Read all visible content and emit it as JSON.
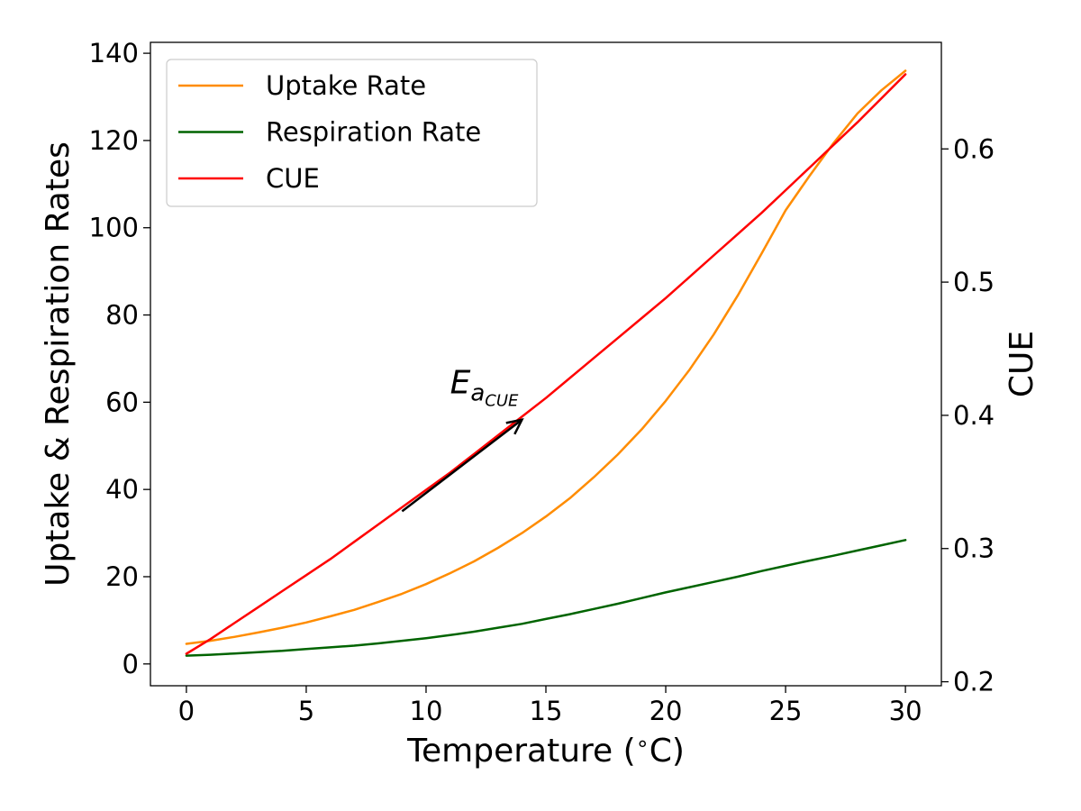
{
  "chart_data": {
    "type": "line",
    "xlabel": "Temperature ($^\\circ$C)",
    "ylabel": "Uptake & Respiration Rates",
    "y2label": "CUE",
    "xlim": [
      -1.5,
      31.5
    ],
    "ylim": [
      -5,
      142.5
    ],
    "y2lim": [
      0.197,
      0.68
    ],
    "xticks": [
      0,
      5,
      10,
      15,
      20,
      25,
      30
    ],
    "yticks": [
      0,
      20,
      40,
      60,
      80,
      100,
      120,
      140
    ],
    "y2ticks": [
      0.2,
      0.3,
      0.4,
      0.5,
      0.6
    ],
    "y2tick_labels": [
      "0.2",
      "0.3",
      "0.4",
      "0.5",
      "0.6"
    ],
    "legend_position": "top-left",
    "grid": false,
    "annotation": {
      "text_main": "E",
      "text_sub": "a",
      "text_subsub": "CUE",
      "arrow_from": [
        9,
        35
      ],
      "arrow_to": [
        14,
        56
      ],
      "text_at": [
        11,
        62
      ]
    },
    "x": [
      0,
      1,
      2,
      3,
      4,
      5,
      6,
      7,
      8,
      9,
      10,
      11,
      12,
      13,
      14,
      15,
      16,
      17,
      18,
      19,
      20,
      21,
      22,
      23,
      24,
      25,
      26,
      27,
      28,
      29,
      30
    ],
    "series": [
      {
        "name": "Uptake Rate",
        "axis": "left",
        "color": "#ff8c00",
        "values": [
          4.6,
          5.3,
          6.2,
          7.2,
          8.3,
          9.5,
          10.9,
          12.4,
          14.2,
          16.1,
          18.3,
          20.8,
          23.5,
          26.6,
          30.0,
          33.8,
          38.0,
          42.8,
          48.0,
          53.8,
          60.3,
          67.5,
          75.5,
          84.4,
          94.1,
          104.0,
          111.9,
          119.4,
          126.2,
          131.5,
          136.0
        ]
      },
      {
        "name": "Respiration Rate",
        "axis": "left",
        "color": "#006400",
        "values": [
          1.9,
          2.1,
          2.4,
          2.7,
          3.0,
          3.4,
          3.8,
          4.2,
          4.7,
          5.3,
          5.9,
          6.6,
          7.4,
          8.3,
          9.2,
          10.3,
          11.4,
          12.6,
          13.8,
          15.1,
          16.4,
          17.6,
          18.8,
          20.0,
          21.3,
          22.5,
          23.7,
          24.8,
          26.0,
          27.2,
          28.4
        ]
      },
      {
        "name": "CUE",
        "axis": "right",
        "color": "#ff0000",
        "values": [
          0.221,
          0.232,
          0.244,
          0.256,
          0.268,
          0.28,
          0.292,
          0.305,
          0.318,
          0.331,
          0.344,
          0.357,
          0.371,
          0.385,
          0.399,
          0.413,
          0.428,
          0.443,
          0.458,
          0.473,
          0.488,
          0.504,
          0.52,
          0.536,
          0.552,
          0.569,
          0.586,
          0.603,
          0.62,
          0.638,
          0.656
        ]
      }
    ]
  }
}
